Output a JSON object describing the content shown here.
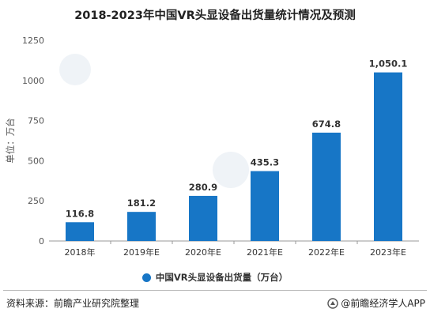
{
  "chart_data": {
    "type": "bar",
    "title": "2018-2023年中国VR头显设备出货量统计情况及预测",
    "ylabel": "单位：万台",
    "categories": [
      "2018年",
      "2019年E",
      "2020年E",
      "2021年E",
      "2022年E",
      "2023年E"
    ],
    "series": [
      {
        "name": "中国VR头显设备出货量（万台）",
        "values": [
          116.8,
          181.2,
          280.9,
          435.3,
          674.8,
          1050.1
        ]
      }
    ],
    "value_labels": [
      "116.8",
      "181.2",
      "280.9",
      "435.3",
      "674.8",
      "1,050.1"
    ],
    "yticks": [
      "0",
      "250",
      "500",
      "750",
      "1000",
      "1250"
    ],
    "ylim": [
      0,
      1250
    ],
    "bar_color": "#1776c6",
    "legend_position": "bottom",
    "grid": false
  },
  "footer": {
    "source": "资料来源：前瞻产业研究院整理",
    "credit": "@前瞻经济学人APP"
  }
}
